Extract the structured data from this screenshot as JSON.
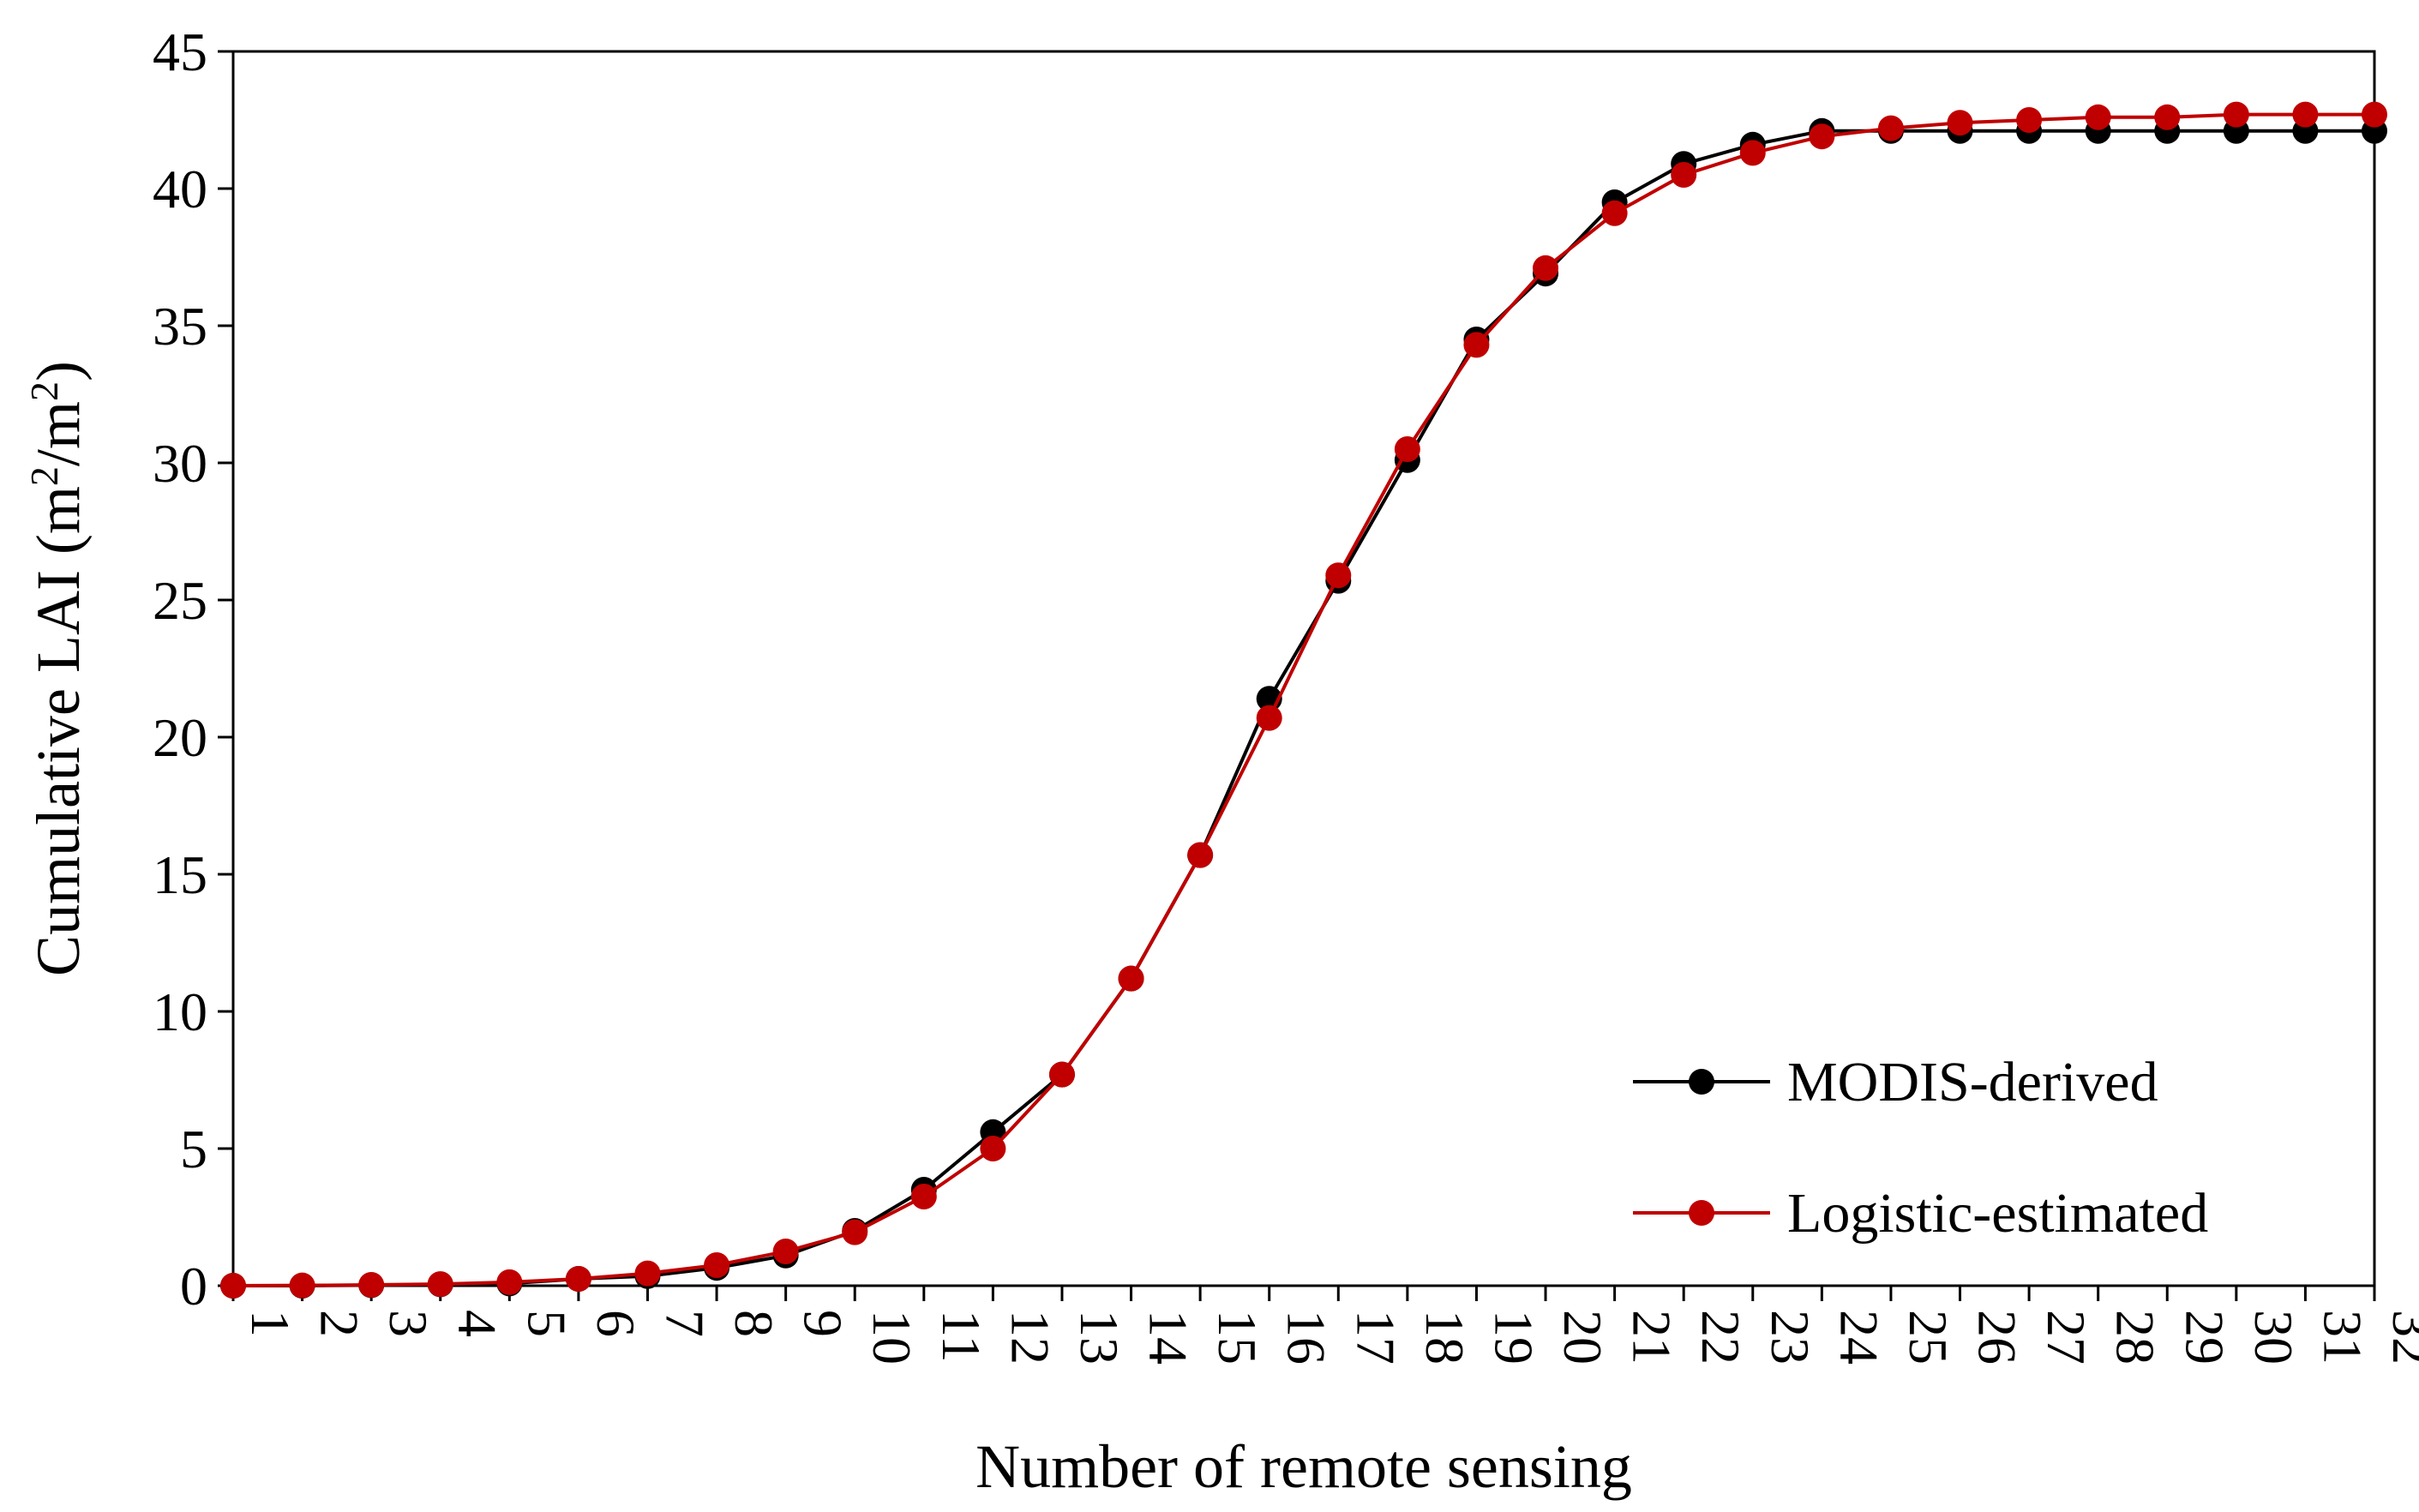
{
  "chart_data": {
    "type": "line",
    "xlabel": "Number of remote sensing",
    "ylabel": {
      "prefix": "Cumulative LAI (m",
      "sup1": "2",
      "mid": "/m",
      "sup2": "2",
      "suffix": ")"
    },
    "xlim": [
      1,
      32
    ],
    "ylim": [
      0,
      45
    ],
    "x_ticks": [
      1,
      2,
      3,
      4,
      5,
      6,
      7,
      8,
      9,
      10,
      11,
      12,
      13,
      14,
      15,
      16,
      17,
      18,
      19,
      20,
      21,
      22,
      23,
      24,
      25,
      26,
      27,
      28,
      29,
      30,
      31,
      32
    ],
    "y_ticks": [
      0,
      5,
      10,
      15,
      20,
      25,
      30,
      35,
      40,
      45
    ],
    "grid": false,
    "legend_position": "bottom-right",
    "x": [
      1,
      2,
      3,
      4,
      5,
      6,
      7,
      8,
      9,
      10,
      11,
      12,
      13,
      14,
      15,
      16,
      17,
      18,
      19,
      20,
      21,
      22,
      23,
      24,
      25,
      26,
      27,
      28,
      29,
      30,
      31,
      32
    ],
    "series": [
      {
        "name": "MODIS-derived",
        "color": "#000000",
        "values": [
          0,
          0,
          0.02,
          0.05,
          0.08,
          0.25,
          0.35,
          0.65,
          1.1,
          2.0,
          3.5,
          5.6,
          7.7,
          11.2,
          15.7,
          21.4,
          25.7,
          30.1,
          34.5,
          36.9,
          39.5,
          40.9,
          41.6,
          42.1,
          42.1,
          42.1,
          42.1,
          42.1,
          42.1,
          42.1,
          42.1,
          42.1
        ]
      },
      {
        "name": "Logistic-estimated",
        "color": "#c00000",
        "values": [
          0,
          0.01,
          0.03,
          0.06,
          0.13,
          0.25,
          0.45,
          0.75,
          1.25,
          1.95,
          3.25,
          5.0,
          7.7,
          11.2,
          15.7,
          20.7,
          25.9,
          30.5,
          34.3,
          37.1,
          39.1,
          40.5,
          41.3,
          41.9,
          42.2,
          42.4,
          42.5,
          42.6,
          42.6,
          42.7,
          42.7,
          42.7
        ]
      }
    ]
  }
}
